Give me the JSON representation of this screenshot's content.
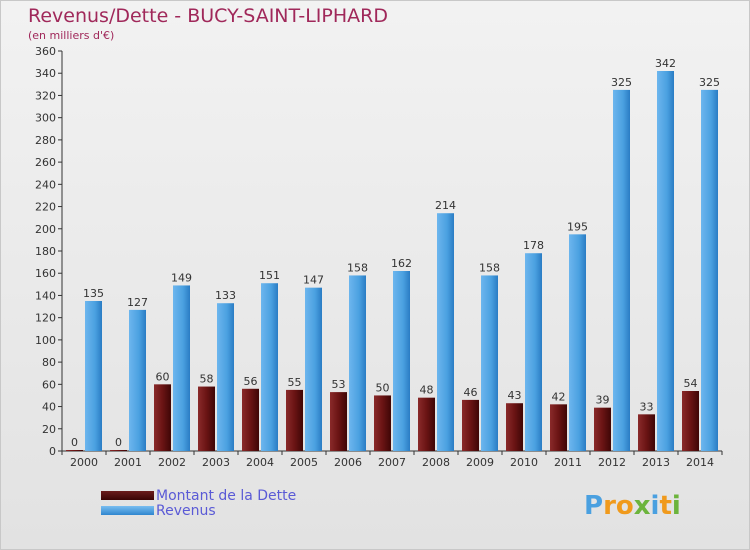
{
  "header": {
    "title": "Revenus/Dette - BUCY-SAINT-LIPHARD",
    "subtitle": "(en milliers d'€)"
  },
  "legend": {
    "dette_label": "Montant de la Dette",
    "revenus_label": "Revenus"
  },
  "logo": {
    "text": "Proxiti"
  },
  "colors": {
    "title": "#a0285a",
    "dette": "#6b1c1c",
    "revenus": "#4aa0e0",
    "legend_text": "#5a5ad6"
  },
  "chart_data": {
    "type": "bar",
    "categories": [
      "2000",
      "2001",
      "2002",
      "2003",
      "2004",
      "2005",
      "2006",
      "2007",
      "2008",
      "2009",
      "2010",
      "2011",
      "2012",
      "2013",
      "2014"
    ],
    "series": [
      {
        "name": "Montant de la Dette",
        "values": [
          0,
          0,
          60,
          58,
          56,
          55,
          53,
          50,
          48,
          46,
          43,
          42,
          39,
          33,
          54
        ]
      },
      {
        "name": "Revenus",
        "values": [
          135,
          127,
          149,
          133,
          151,
          147,
          158,
          162,
          214,
          158,
          178,
          195,
          325,
          342,
          325
        ]
      }
    ],
    "ylim": [
      0,
      360
    ],
    "yticks": [
      0,
      20,
      40,
      60,
      80,
      100,
      120,
      140,
      160,
      180,
      200,
      220,
      240,
      260,
      280,
      300,
      320,
      340,
      360
    ],
    "title": "Revenus/Dette - BUCY-SAINT-LIPHARD",
    "ylabel": "(en milliers d'€)",
    "legend_position": "bottom-left",
    "grid": false
  }
}
